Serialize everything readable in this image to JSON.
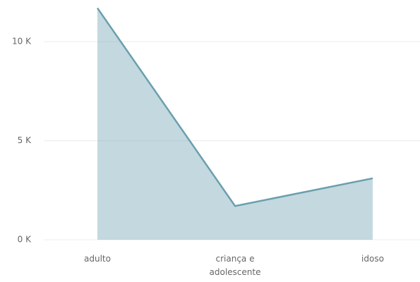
{
  "chart_data": {
    "type": "area",
    "categories": [
      "adulto",
      "criança e adolescente",
      "idoso"
    ],
    "series": [
      {
        "name": null,
        "color": "#6a9fae",
        "values": [
          11700,
          1700,
          3100
        ]
      }
    ],
    "ylim": [
      0,
      12000
    ],
    "yticks": [
      {
        "value": 0,
        "label": "0 K"
      },
      {
        "value": 5000,
        "label": "5 K"
      },
      {
        "value": 10000,
        "label": "10 K"
      }
    ],
    "grid": true
  }
}
